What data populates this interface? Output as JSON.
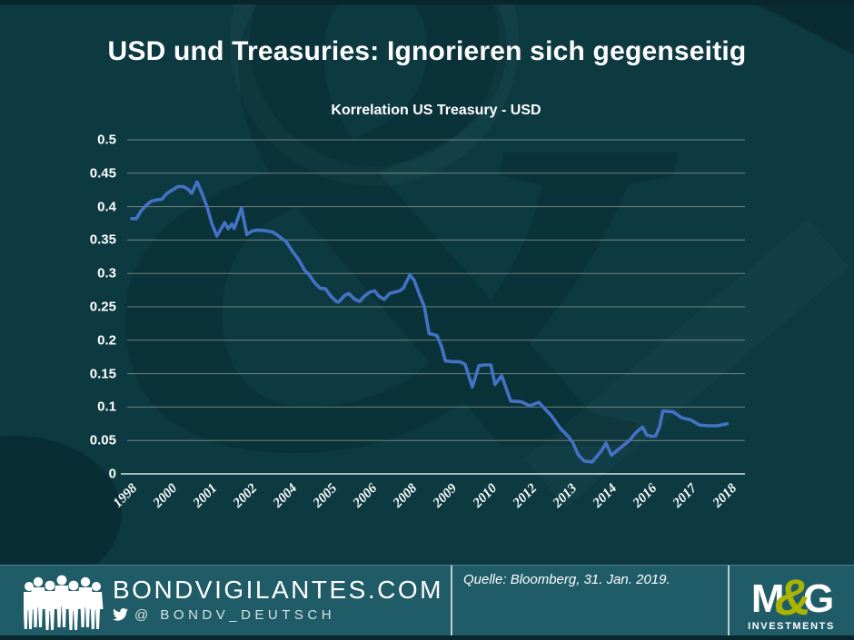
{
  "slide_title": "USD und Treasuries: Ignorieren sich gegenseitig",
  "chart_data": {
    "type": "line",
    "title": "Korrelation US Treasury - USD",
    "x_tick_labels": [
      "1998",
      "2000",
      "2001",
      "2002",
      "2004",
      "2005",
      "2006",
      "2008",
      "2009",
      "2010",
      "2012",
      "2013",
      "2014",
      "2016",
      "2017",
      "2018"
    ],
    "y_tick_labels": [
      "0.5",
      "0.45",
      "0.4",
      "0.35",
      "0.3",
      "0.25",
      "0.2",
      "0.15",
      "0.1",
      "0.05",
      "0"
    ],
    "ylim": [
      0,
      0.5
    ],
    "y_step": 0.05,
    "grid": "horizontal",
    "legend": "none",
    "series": [
      {
        "name": "Korrelation US Treasury - USD",
        "color": "#4472c4",
        "points": [
          [
            0.003,
            0.382
          ],
          [
            0.011,
            0.382
          ],
          [
            0.018,
            0.393
          ],
          [
            0.026,
            0.401
          ],
          [
            0.035,
            0.408
          ],
          [
            0.044,
            0.41
          ],
          [
            0.053,
            0.411
          ],
          [
            0.062,
            0.42
          ],
          [
            0.071,
            0.425
          ],
          [
            0.08,
            0.43
          ],
          [
            0.089,
            0.43
          ],
          [
            0.097,
            0.426
          ],
          [
            0.103,
            0.42
          ],
          [
            0.112,
            0.437
          ],
          [
            0.12,
            0.42
          ],
          [
            0.129,
            0.399
          ],
          [
            0.136,
            0.376
          ],
          [
            0.145,
            0.356
          ],
          [
            0.158,
            0.376
          ],
          [
            0.164,
            0.367
          ],
          [
            0.17,
            0.374
          ],
          [
            0.174,
            0.367
          ],
          [
            0.186,
            0.398
          ],
          [
            0.195,
            0.358
          ],
          [
            0.203,
            0.363
          ],
          [
            0.212,
            0.365
          ],
          [
            0.226,
            0.364
          ],
          [
            0.238,
            0.362
          ],
          [
            0.245,
            0.358
          ],
          [
            0.261,
            0.347
          ],
          [
            0.271,
            0.333
          ],
          [
            0.282,
            0.32
          ],
          [
            0.291,
            0.305
          ],
          [
            0.298,
            0.299
          ],
          [
            0.308,
            0.286
          ],
          [
            0.317,
            0.278
          ],
          [
            0.326,
            0.277
          ],
          [
            0.335,
            0.266
          ],
          [
            0.344,
            0.258
          ],
          [
            0.348,
            0.257
          ],
          [
            0.358,
            0.267
          ],
          [
            0.365,
            0.27
          ],
          [
            0.374,
            0.262
          ],
          [
            0.383,
            0.258
          ],
          [
            0.391,
            0.266
          ],
          [
            0.4,
            0.272
          ],
          [
            0.408,
            0.274
          ],
          [
            0.415,
            0.266
          ],
          [
            0.424,
            0.261
          ],
          [
            0.433,
            0.27
          ],
          [
            0.442,
            0.272
          ],
          [
            0.45,
            0.274
          ],
          [
            0.456,
            0.278
          ],
          [
            0.467,
            0.298
          ],
          [
            0.474,
            0.29
          ],
          [
            0.483,
            0.268
          ],
          [
            0.491,
            0.25
          ],
          [
            0.499,
            0.21
          ],
          [
            0.512,
            0.207
          ],
          [
            0.52,
            0.19
          ],
          [
            0.526,
            0.169
          ],
          [
            0.538,
            0.168
          ],
          [
            0.55,
            0.168
          ],
          [
            0.559,
            0.164
          ],
          [
            0.571,
            0.13
          ],
          [
            0.582,
            0.162
          ],
          [
            0.592,
            0.163
          ],
          [
            0.602,
            0.163
          ],
          [
            0.609,
            0.134
          ],
          [
            0.62,
            0.147
          ],
          [
            0.635,
            0.109
          ],
          [
            0.652,
            0.108
          ],
          [
            0.667,
            0.102
          ],
          [
            0.682,
            0.107
          ],
          [
            0.703,
            0.087
          ],
          [
            0.718,
            0.068
          ],
          [
            0.73,
            0.057
          ],
          [
            0.738,
            0.048
          ],
          [
            0.748,
            0.028
          ],
          [
            0.758,
            0.019
          ],
          [
            0.771,
            0.018
          ],
          [
            0.786,
            0.034
          ],
          [
            0.794,
            0.046
          ],
          [
            0.803,
            0.028
          ],
          [
            0.818,
            0.039
          ],
          [
            0.833,
            0.05
          ],
          [
            0.844,
            0.062
          ],
          [
            0.855,
            0.07
          ],
          [
            0.862,
            0.058
          ],
          [
            0.871,
            0.056
          ],
          [
            0.877,
            0.057
          ],
          [
            0.883,
            0.07
          ],
          [
            0.889,
            0.094
          ],
          [
            0.906,
            0.093
          ],
          [
            0.92,
            0.084
          ],
          [
            0.935,
            0.081
          ],
          [
            0.95,
            0.073
          ],
          [
            0.965,
            0.072
          ],
          [
            0.98,
            0.072
          ],
          [
            0.991,
            0.074
          ],
          [
            0.996,
            0.075
          ]
        ]
      }
    ]
  },
  "footer": {
    "site": "BONDVIGILANTES.COM",
    "twitter_handle": "@ BONDV_DEUTSCH",
    "source": "Quelle: Bloomberg, 31. Jan. 2019.",
    "logo": {
      "m": "M",
      "amp": "&",
      "g": "G",
      "sub": "INVESTMENTS"
    }
  },
  "colors": {
    "background": "#0d3941",
    "footer_background": "#1f5c68",
    "line": "#4472c4",
    "accent_green": "#a9b400",
    "gridline": "#d4d4c4",
    "text": "#ffffff"
  }
}
